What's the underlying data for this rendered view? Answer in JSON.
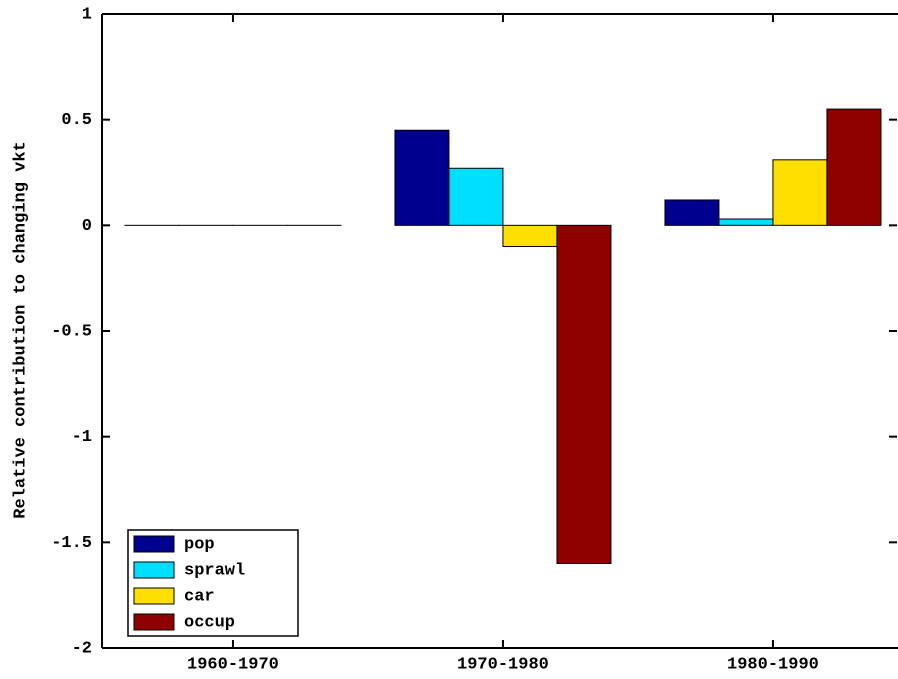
{
  "chart_data": {
    "type": "bar",
    "y_label": "Relative contribution to changing vkt",
    "categories": [
      "1960-1970",
      "1970-1980",
      "1980-1990"
    ],
    "series": [
      {
        "name": "pop",
        "color": "#00008f",
        "values": [
          0,
          0.45,
          0.12
        ]
      },
      {
        "name": "sprawl",
        "color": "#00dfff",
        "values": [
          0,
          0.27,
          0.03
        ]
      },
      {
        "name": "car",
        "color": "#ffdf00",
        "values": [
          0,
          -0.1,
          0.31
        ]
      },
      {
        "name": "occup",
        "color": "#8f0000",
        "values": [
          0,
          -1.6,
          0.55
        ]
      }
    ],
    "ylim": [
      -2,
      1
    ],
    "yticks": [
      -2,
      -1.5,
      -1,
      -0.5,
      0,
      0.5,
      1
    ],
    "grid": false,
    "legend": "southwest"
  }
}
